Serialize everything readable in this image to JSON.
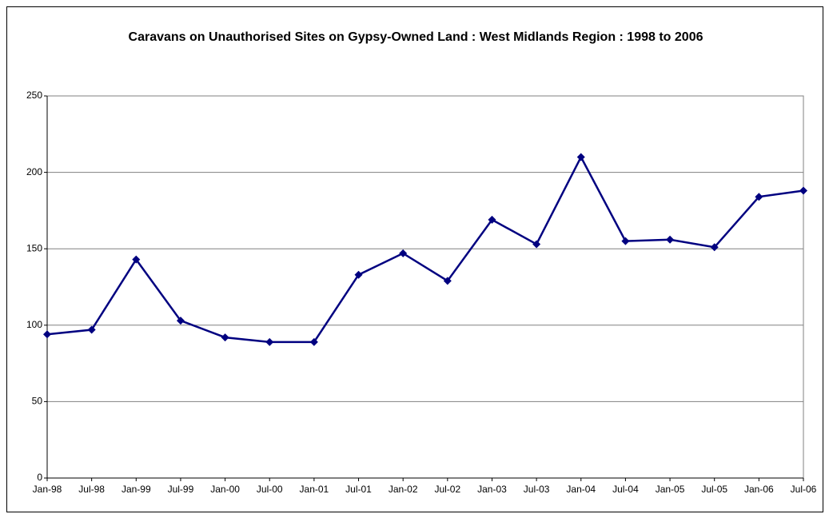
{
  "chart_data": {
    "type": "line",
    "title": "Caravans on Unauthorised Sites on Gypsy-Owned Land : West Midlands Region : 1998 to 2006",
    "categories": [
      "Jan-98",
      "Jul-98",
      "Jan-99",
      "Jul-99",
      "Jan-00",
      "Jul-00",
      "Jan-01",
      "Jul-01",
      "Jan-02",
      "Jul-02",
      "Jan-03",
      "Jul-03",
      "Jan-04",
      "Jul-04",
      "Jan-05",
      "Jul-05",
      "Jan-06",
      "Jul-06"
    ],
    "values": [
      94,
      97,
      143,
      103,
      92,
      89,
      89,
      133,
      147,
      129,
      169,
      153,
      210,
      155,
      156,
      151,
      184,
      188
    ],
    "color": "#000080",
    "ylim": [
      0,
      250
    ],
    "yticks": [
      0,
      50,
      100,
      150,
      200,
      250
    ],
    "grid": true
  }
}
